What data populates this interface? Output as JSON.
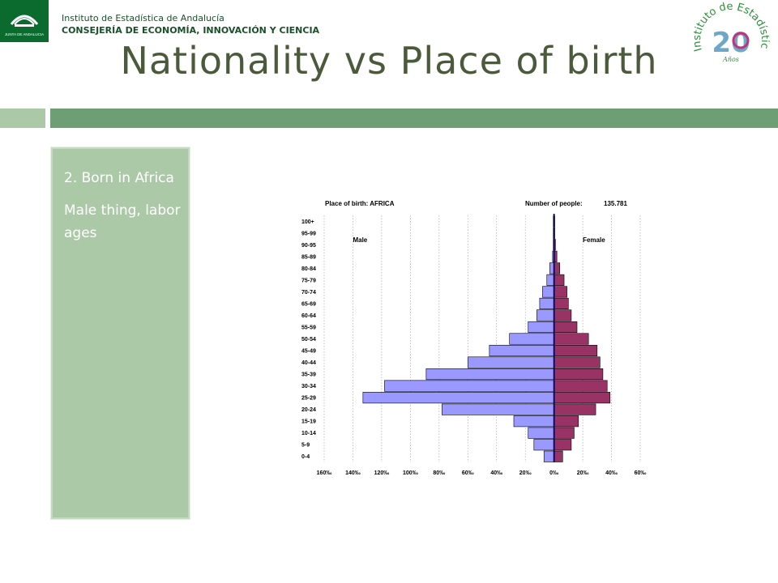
{
  "header": {
    "org_line1": "Instituto de Estadística de Andalucía",
    "org_line2": "CONSEJERÍA DE ECONOMÍA, INNOVACIÓN Y CIENCIA",
    "logo_icon": "junta-de-andalucia-logo-icon",
    "logo_text": "JUNTA DE ANDALUCIA",
    "anniversary_text": "Instituto de Estadística de Andalucía",
    "anniversary_number": "20",
    "anniversary_years": "Años"
  },
  "slide": {
    "title": "Nationality vs Place of birth",
    "colors": {
      "band_light": "#acc9a7",
      "band_dark": "#6e9f74",
      "panel": "#acc9a7",
      "title": "#4a5a3a"
    }
  },
  "side_panel": {
    "point1": "2. Born in Africa",
    "point2": "Male thing, labor ages"
  },
  "chart_data": {
    "type": "bar",
    "orientation": "horizontal-pyramid",
    "title": "Place of birth: AFRICA",
    "count_label": "Number of people:",
    "count_value": "135.781",
    "categories": [
      "0-4",
      "5-9",
      "10-14",
      "15-19",
      "20-24",
      "25-29",
      "30-34",
      "35-39",
      "40-44",
      "45-49",
      "50-54",
      "55-59",
      "60-64",
      "65-69",
      "70-74",
      "75-79",
      "80-84",
      "85-89",
      "90-95",
      "95-99",
      "100+"
    ],
    "series": [
      {
        "name": "Male",
        "color": "#9999ff",
        "values": [
          7,
          14,
          18,
          28,
          78,
          133,
          118,
          89,
          60,
          45,
          31,
          18,
          12,
          10,
          8,
          5,
          3,
          1,
          0.5,
          0.5,
          0.5
        ]
      },
      {
        "name": "Female",
        "color": "#993366",
        "values": [
          6,
          12,
          14,
          17,
          29,
          39,
          37,
          34,
          32,
          30,
          24,
          16,
          12,
          10,
          9,
          7,
          4,
          2,
          1,
          0.5,
          0.5
        ]
      }
    ],
    "x_ticks": [
      "160‰",
      "140‰",
      "120‰",
      "100‰",
      "80‰",
      "60‰",
      "40‰",
      "20‰",
      "0‰",
      "20‰",
      "40‰",
      "60‰"
    ],
    "xlim": [
      -160,
      60
    ],
    "grid": true,
    "legend": "top"
  }
}
